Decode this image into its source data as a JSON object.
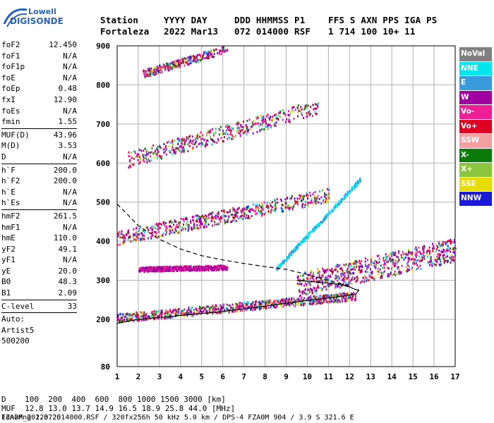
{
  "logo": {
    "lowell": "Lowell",
    "name": "DIGISONDE"
  },
  "header": {
    "line1": [
      "Station",
      "YYYY DAY",
      "DDD HHMMSS P1",
      "FFS S AXN PPS IGA PS"
    ],
    "line2": [
      "Fortaleza",
      "2022 Mar13",
      "072 014000 RSF",
      "1 714 100 10+ 11"
    ]
  },
  "params": [
    {
      "type": "row",
      "name": "foF2",
      "value": "12.450"
    },
    {
      "type": "row",
      "name": "foF1",
      "value": "N/A"
    },
    {
      "type": "row",
      "name": "foF1p",
      "value": "N/A"
    },
    {
      "type": "row",
      "name": "foE",
      "value": "N/A"
    },
    {
      "type": "row",
      "name": "foEp",
      "value": "0.48"
    },
    {
      "type": "row",
      "name": "fxI",
      "value": "12.90"
    },
    {
      "type": "row",
      "name": "foEs",
      "value": "N/A"
    },
    {
      "type": "row",
      "name": "fmin",
      "value": "1.55"
    },
    {
      "type": "sep"
    },
    {
      "type": "row",
      "name": "MUF(D)",
      "value": "43.96"
    },
    {
      "type": "row",
      "name": "M(D)",
      "value": "3.53"
    },
    {
      "type": "row",
      "name": "D",
      "value": "N/A"
    },
    {
      "type": "sep"
    },
    {
      "type": "row",
      "name": "h`F",
      "value": "200.0"
    },
    {
      "type": "row",
      "name": "h`F2",
      "value": "200.0"
    },
    {
      "type": "row",
      "name": "h`E",
      "value": "N/A"
    },
    {
      "type": "row",
      "name": "h`Es",
      "value": "N/A"
    },
    {
      "type": "sep"
    },
    {
      "type": "row",
      "name": "hmF2",
      "value": "261.5"
    },
    {
      "type": "row",
      "name": "hmF1",
      "value": "N/A"
    },
    {
      "type": "row",
      "name": "hmE",
      "value": "110.0"
    },
    {
      "type": "row",
      "name": "yF2",
      "value": "49.1"
    },
    {
      "type": "row",
      "name": "yF1",
      "value": "N/A"
    },
    {
      "type": "row",
      "name": "yE",
      "value": "20.0"
    },
    {
      "type": "row",
      "name": "B0",
      "value": "48.3"
    },
    {
      "type": "row",
      "name": "B1",
      "value": "2.09"
    },
    {
      "type": "sep"
    },
    {
      "type": "row",
      "name": "C-level",
      "value": "33"
    },
    {
      "type": "sep"
    },
    {
      "type": "plain",
      "text": "Auto:"
    },
    {
      "type": "plain",
      "text": "Artist5"
    },
    {
      "type": "plain",
      "text": "500200"
    }
  ],
  "legend": [
    {
      "label": "NoVal",
      "color": "#808080"
    },
    {
      "label": "NNE",
      "color": "#00e5ee"
    },
    {
      "label": "E",
      "color": "#3a9bdc"
    },
    {
      "label": "W",
      "color": "#a000a0"
    },
    {
      "label": "Vo-",
      "color": "#ee1e96"
    },
    {
      "label": "Vo+",
      "color": "#dd0022"
    },
    {
      "label": "SSW",
      "color": "#f5a0a0"
    },
    {
      "label": "X-",
      "color": "#0a7a0a"
    },
    {
      "label": "X+",
      "color": "#8cc63f"
    },
    {
      "label": "SSE",
      "color": "#e6dc00"
    },
    {
      "label": "NNW",
      "color": "#1a1ad8"
    }
  ],
  "footer": {
    "line1": "D    100  200  400  600  800 1000 1500 3000 [km]",
    "line2": "MUF  12.8 13.0 13.7 14.9 16.5 18.9 25.8 44.0 [MHz]",
    "line3": "FZA0M_2022072014000.RSF / 320fx256h 50 kHz 5.0 km / DPS-4 FZA0M 904 / 3.9 S 321.6 E",
    "line3_right": "Ion2Png 1.3.20"
  },
  "chart_data": {
    "type": "scatter",
    "x_ticks": [
      1,
      2,
      3,
      4,
      5,
      6,
      7,
      8,
      9,
      10,
      11,
      12,
      13,
      14,
      15,
      16,
      17
    ],
    "y_ticks": [
      80,
      200,
      300,
      400,
      500,
      600,
      700,
      800,
      900
    ],
    "xlim": [
      1,
      17
    ],
    "ylim": [
      80,
      900
    ],
    "grid": true,
    "echo_bands": [
      {
        "name": "F trace 1x",
        "f": [
          1.0,
          12.3
        ],
        "h": [
          205,
          262
        ],
        "thick": 22,
        "density": 1.0
      },
      {
        "name": "F trace 2x",
        "f": [
          1.0,
          11.0
        ],
        "h": [
          410,
          520
        ],
        "thick": 35,
        "density": 0.7
      },
      {
        "name": "F trace 3x",
        "f": [
          1.5,
          10.5
        ],
        "h": [
          610,
          745
        ],
        "thick": 40,
        "density": 0.55
      },
      {
        "name": "F trace 4x",
        "f": [
          2.2,
          6.2
        ],
        "h": [
          830,
          895
        ],
        "thick": 20,
        "density": 0.35
      },
      {
        "name": "spread 300-400",
        "f": [
          9.5,
          17.0
        ],
        "h": [
          290,
          380
        ],
        "thick": 60,
        "density": 0.8
      },
      {
        "name": "W patch",
        "f": [
          2.0,
          6.2
        ],
        "h": [
          330,
          335
        ],
        "thick": 12,
        "density": 0.7
      },
      {
        "name": "NNE scatter",
        "f": [
          8.5,
          12.5
        ],
        "h": [
          330,
          560
        ],
        "thick": 10,
        "density": 0.3
      }
    ],
    "curves": [
      {
        "name": "profile solid",
        "style": "solid",
        "f": [
          1.0,
          2.0,
          4.0,
          6.0,
          8.0,
          9.5,
          10.5,
          11.5,
          12.3,
          12.45
        ],
        "h": [
          190,
          200,
          210,
          220,
          234,
          245,
          252,
          258,
          265,
          275
        ]
      },
      {
        "name": "profile solid upper",
        "style": "solid",
        "f": [
          9.5,
          10.5,
          11.5,
          12.0,
          12.3,
          12.45
        ],
        "h": [
          300,
          295,
          290,
          283,
          276,
          275
        ]
      },
      {
        "name": "MUF dashed",
        "style": "dashed",
        "f": [
          1.0,
          1.5,
          2.0,
          3.0,
          4.0,
          5.0,
          6.0,
          7.0,
          8.0,
          9.0,
          10.0,
          11.0,
          12.0
        ],
        "h": [
          495,
          468,
          440,
          405,
          380,
          363,
          352,
          343,
          335,
          328,
          315,
          300,
          285
        ]
      }
    ]
  }
}
